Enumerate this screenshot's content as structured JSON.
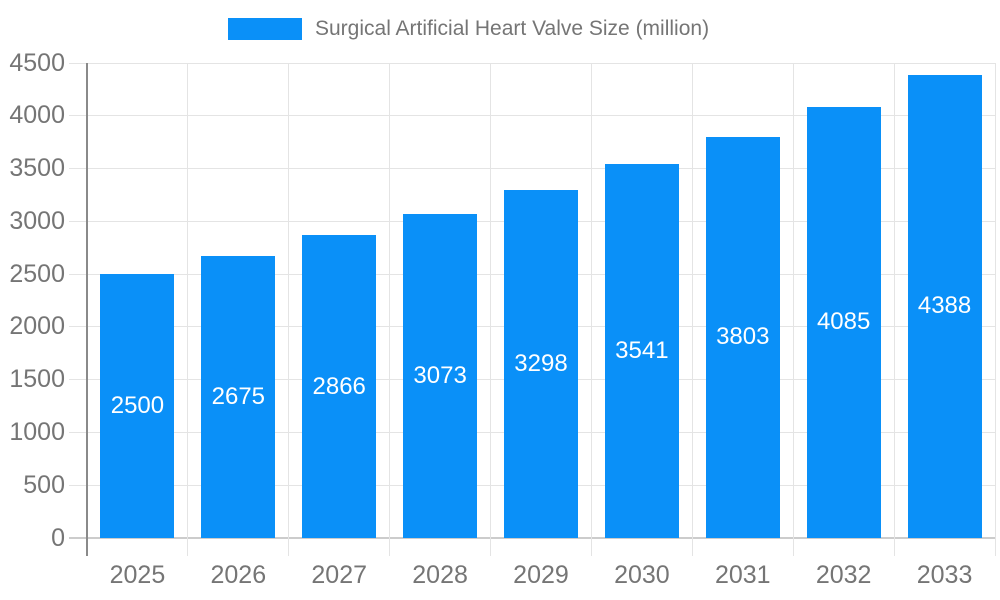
{
  "chart_data": {
    "type": "bar",
    "title": "Surgical Artificial Heart Valve Size (million)",
    "categories": [
      "2025",
      "2026",
      "2027",
      "2028",
      "2029",
      "2030",
      "2031",
      "2032",
      "2033"
    ],
    "values": [
      2500,
      2675,
      2866,
      3073,
      3298,
      3541,
      3803,
      4085,
      4388
    ],
    "y_ticks": [
      0,
      500,
      1000,
      1500,
      2000,
      2500,
      3000,
      3500,
      4000,
      4500
    ],
    "ylim": [
      0,
      4500
    ],
    "xlabel": "",
    "ylabel": "",
    "legend_position": "top",
    "grid": true,
    "bar_labels_visible": true,
    "colors": {
      "bar": "#0A90F8",
      "axis_text": "#757575",
      "bar_label_text": "#FFFFFF",
      "grid": "#E4E4E4",
      "baseline": "#CCCCCC",
      "axis_line": "#8A8A8A",
      "background": "#FFFFFF"
    }
  }
}
